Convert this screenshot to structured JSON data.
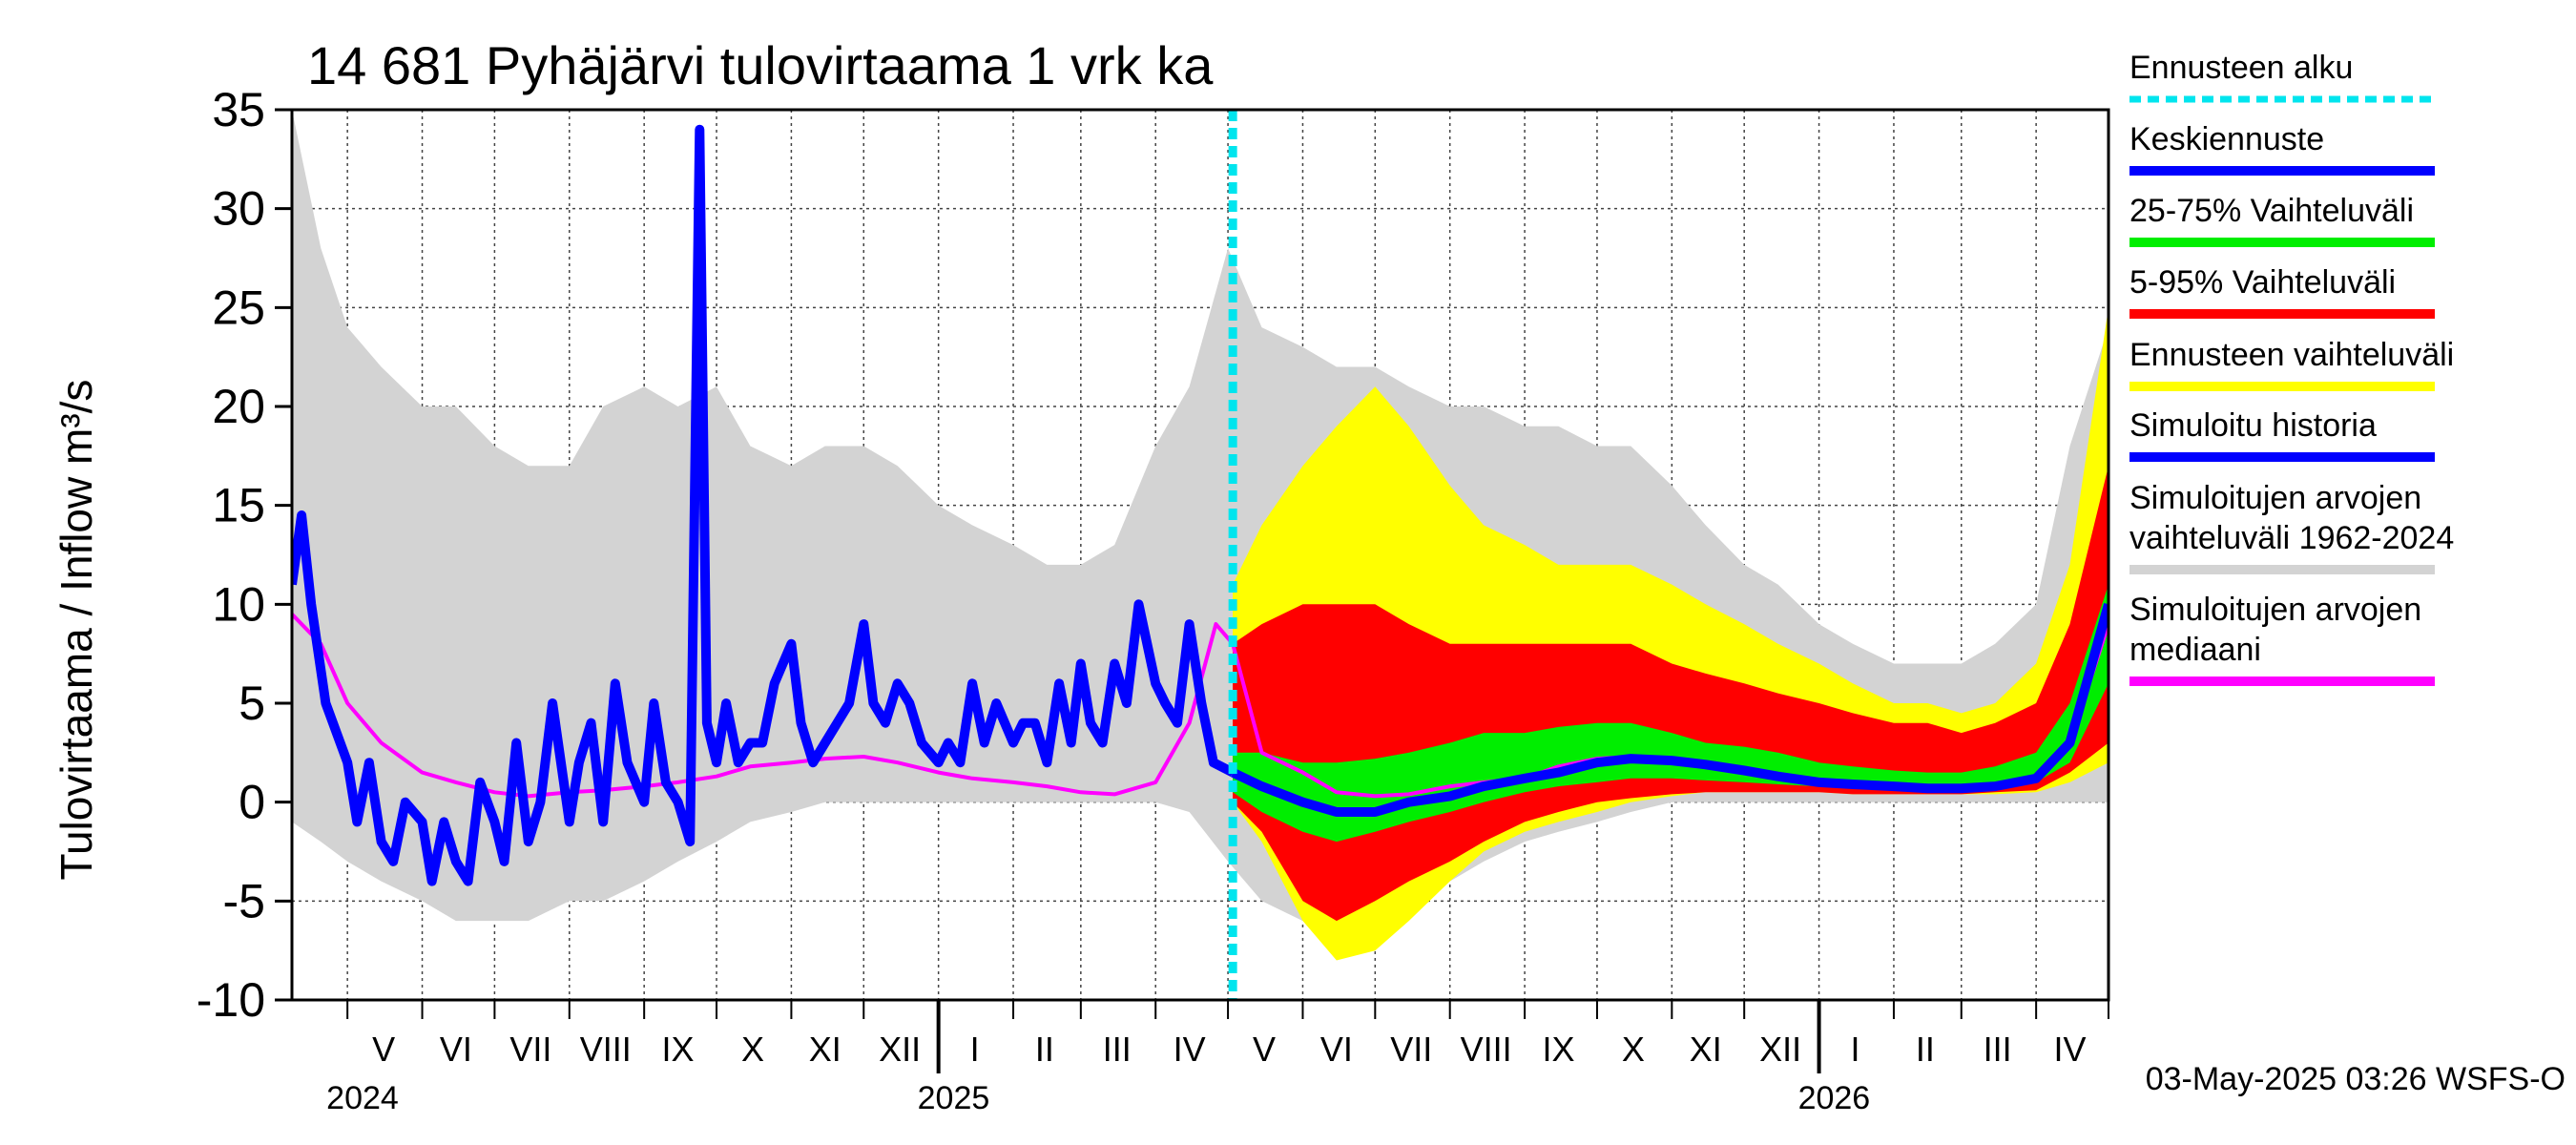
{
  "chart_data": {
    "type": "area",
    "title": "14 681 Pyhäjärvi tulovirtaama 1 vrk ka",
    "ylabel": "Tulovirtaama / Inflow    m³/s",
    "ylim": [
      -10,
      35
    ],
    "yticks": [
      35,
      30,
      25,
      20,
      15,
      10,
      5,
      0,
      -5,
      -10
    ],
    "xlim": [
      "2024-04-08",
      "2026-05-01"
    ],
    "grid": true,
    "forecast_start": "2025-05-03",
    "month_labels": [
      {
        "label": "V",
        "date": "2024-05-16"
      },
      {
        "label": "VI",
        "date": "2024-06-15"
      },
      {
        "label": "VII",
        "date": "2024-07-16"
      },
      {
        "label": "VIII",
        "date": "2024-08-16"
      },
      {
        "label": "IX",
        "date": "2024-09-15"
      },
      {
        "label": "X",
        "date": "2024-10-16"
      },
      {
        "label": "XI",
        "date": "2024-11-15"
      },
      {
        "label": "XII",
        "date": "2024-12-16"
      },
      {
        "label": "I",
        "date": "2025-01-16"
      },
      {
        "label": "II",
        "date": "2025-02-14"
      },
      {
        "label": "III",
        "date": "2025-03-16"
      },
      {
        "label": "IV",
        "date": "2025-04-15"
      },
      {
        "label": "V",
        "date": "2025-05-16"
      },
      {
        "label": "VI",
        "date": "2025-06-15"
      },
      {
        "label": "VII",
        "date": "2025-07-16"
      },
      {
        "label": "VIII",
        "date": "2025-08-16"
      },
      {
        "label": "IX",
        "date": "2025-09-15"
      },
      {
        "label": "X",
        "date": "2025-10-16"
      },
      {
        "label": "XI",
        "date": "2025-11-15"
      },
      {
        "label": "XII",
        "date": "2025-12-16"
      },
      {
        "label": "I",
        "date": "2026-01-16"
      },
      {
        "label": "II",
        "date": "2026-02-14"
      },
      {
        "label": "III",
        "date": "2026-03-16"
      },
      {
        "label": "IV",
        "date": "2026-04-15"
      }
    ],
    "year_labels": [
      {
        "label": "2024",
        "date": "2024-05-01"
      },
      {
        "label": "2025",
        "date": "2025-01-01"
      },
      {
        "label": "2026",
        "date": "2026-01-01"
      }
    ],
    "legend": {
      "placement": "right",
      "items": [
        {
          "text": "Ennusteen alku",
          "color": "#00e5ee",
          "style": "dotted"
        },
        {
          "text": "Keskiennuste",
          "color": "#0000ff"
        },
        {
          "text": "25-75% Vaihteluväli",
          "color": "#00ee00"
        },
        {
          "text": "5-95% Vaihteluväli",
          "color": "#ff0000"
        },
        {
          "text": "Ennusteen vaihteluväli",
          "color": "#ffff00"
        },
        {
          "text": "Simuloitu historia",
          "color": "#0000ff"
        },
        {
          "text": "Simuloitujen arvojen\nvaihteluväli 1962-2024",
          "color": "#d3d3d3"
        },
        {
          "text": "Simuloitujen arvojen\nmediaani",
          "color": "#ff00ff"
        }
      ]
    },
    "series": [
      {
        "name": "Simuloitujen arvojen vaihteluväli 1962-2024",
        "type": "band",
        "color": "#d3d3d3",
        "x": [
          "2024-04-08",
          "2024-04-20",
          "2024-05-01",
          "2024-05-15",
          "2024-06-01",
          "2024-06-15",
          "2024-07-01",
          "2024-07-15",
          "2024-08-01",
          "2024-08-15",
          "2024-09-01",
          "2024-09-15",
          "2024-10-01",
          "2024-10-15",
          "2024-11-01",
          "2024-11-15",
          "2024-12-01",
          "2024-12-15",
          "2025-01-01",
          "2025-01-15",
          "2025-02-01",
          "2025-02-15",
          "2025-03-01",
          "2025-03-15",
          "2025-04-01",
          "2025-04-15",
          "2025-05-01",
          "2025-05-15",
          "2025-06-01",
          "2025-06-15",
          "2025-07-01",
          "2025-07-15",
          "2025-08-01",
          "2025-08-15",
          "2025-09-01",
          "2025-09-15",
          "2025-10-01",
          "2025-10-15",
          "2025-11-01",
          "2025-11-15",
          "2025-12-01",
          "2025-12-15",
          "2026-01-01",
          "2026-01-15",
          "2026-02-01",
          "2026-02-15",
          "2026-03-01",
          "2026-03-15",
          "2026-04-01",
          "2026-04-15",
          "2026-05-01"
        ],
        "low": [
          -1,
          -2,
          -3,
          -4,
          -5,
          -6,
          -6,
          -6,
          -5,
          -5,
          -4,
          -3,
          -2,
          -1,
          -0.5,
          0,
          0,
          0,
          0,
          0,
          0,
          0,
          0,
          0,
          0,
          -0.5,
          -3,
          -5,
          -6,
          -6.5,
          -6,
          -5,
          -4,
          -3,
          -2,
          -1.5,
          -1,
          -0.5,
          0,
          0,
          0,
          0,
          0,
          0,
          0,
          0,
          0,
          0,
          0,
          0,
          0
        ],
        "high": [
          35,
          28,
          24,
          22,
          20,
          20,
          18,
          17,
          17,
          20,
          21,
          20,
          21,
          18,
          17,
          18,
          18,
          17,
          15,
          14,
          13,
          12,
          12,
          13,
          18,
          21,
          28,
          24,
          23,
          22,
          22,
          21,
          20,
          20,
          19,
          19,
          18,
          18,
          16,
          14,
          12,
          11,
          9,
          8,
          7,
          7,
          7,
          8,
          10,
          18,
          24
        ]
      },
      {
        "name": "Ennusteen vaihteluväli",
        "type": "band",
        "color": "#ffff00",
        "x": [
          "2025-05-03",
          "2025-05-15",
          "2025-06-01",
          "2025-06-15",
          "2025-07-01",
          "2025-07-15",
          "2025-08-01",
          "2025-08-15",
          "2025-09-01",
          "2025-09-15",
          "2025-10-01",
          "2025-10-15",
          "2025-11-01",
          "2025-11-15",
          "2025-12-01",
          "2025-12-15",
          "2026-01-01",
          "2026-01-15",
          "2026-02-01",
          "2026-02-15",
          "2026-03-01",
          "2026-03-15",
          "2026-04-01",
          "2026-04-15",
          "2026-05-01"
        ],
        "low": [
          0,
          -2,
          -6,
          -8,
          -7.5,
          -6,
          -4,
          -2.5,
          -1.5,
          -1,
          -0.5,
          0,
          0.3,
          0.5,
          0.5,
          0.5,
          0.5,
          0.4,
          0.4,
          0.4,
          0.4,
          0.4,
          0.5,
          1,
          2
        ],
        "high": [
          11,
          14,
          17,
          19,
          21,
          19,
          16,
          14,
          13,
          12,
          12,
          12,
          11,
          10,
          9,
          8,
          7,
          6,
          5,
          5,
          4.5,
          5,
          7,
          12,
          25
        ]
      },
      {
        "name": "5-95% Vaihteluväli",
        "type": "band",
        "color": "#ff0000",
        "x": [
          "2025-05-03",
          "2025-05-15",
          "2025-06-01",
          "2025-06-15",
          "2025-07-01",
          "2025-07-15",
          "2025-08-01",
          "2025-08-15",
          "2025-09-01",
          "2025-09-15",
          "2025-10-01",
          "2025-10-15",
          "2025-11-01",
          "2025-11-15",
          "2025-12-01",
          "2025-12-15",
          "2026-01-01",
          "2026-01-15",
          "2026-02-01",
          "2026-02-15",
          "2026-03-01",
          "2026-03-15",
          "2026-04-01",
          "2026-04-15",
          "2026-05-01"
        ],
        "low": [
          0,
          -1.5,
          -5,
          -6,
          -5,
          -4,
          -3,
          -2,
          -1,
          -0.5,
          0,
          0.2,
          0.4,
          0.5,
          0.5,
          0.5,
          0.5,
          0.4,
          0.4,
          0.4,
          0.4,
          0.5,
          0.6,
          1.5,
          3
        ],
        "high": [
          8,
          9,
          10,
          10,
          10,
          9,
          8,
          8,
          8,
          8,
          8,
          8,
          7,
          6.5,
          6,
          5.5,
          5,
          4.5,
          4,
          4,
          3.5,
          4,
          5,
          9,
          17
        ]
      },
      {
        "name": "25-75% Vaihteluväli",
        "type": "band",
        "color": "#00ee00",
        "x": [
          "2025-05-03",
          "2025-05-15",
          "2025-06-01",
          "2025-06-15",
          "2025-07-01",
          "2025-07-15",
          "2025-08-01",
          "2025-08-15",
          "2025-09-01",
          "2025-09-15",
          "2025-10-01",
          "2025-10-15",
          "2025-11-01",
          "2025-11-15",
          "2025-12-01",
          "2025-12-15",
          "2026-01-01",
          "2026-01-15",
          "2026-02-01",
          "2026-02-15",
          "2026-03-01",
          "2026-03-15",
          "2026-04-01",
          "2026-04-15",
          "2026-05-01"
        ],
        "low": [
          0.5,
          -0.5,
          -1.5,
          -2,
          -1.5,
          -1,
          -0.5,
          0,
          0.5,
          0.8,
          1,
          1.2,
          1.2,
          1.1,
          1,
          0.9,
          0.8,
          0.7,
          0.6,
          0.6,
          0.6,
          0.7,
          1,
          2,
          6
        ],
        "high": [
          2.5,
          2.5,
          2,
          2,
          2.2,
          2.5,
          3,
          3.5,
          3.5,
          3.8,
          4,
          4,
          3.5,
          3,
          2.8,
          2.5,
          2,
          1.8,
          1.6,
          1.5,
          1.5,
          1.8,
          2.5,
          5,
          11
        ]
      },
      {
        "name": "Simuloitujen arvojen mediaani",
        "type": "line",
        "color": "#ff00ff",
        "x": [
          "2024-04-08",
          "2024-04-20",
          "2024-05-01",
          "2024-05-15",
          "2024-06-01",
          "2024-06-15",
          "2024-07-01",
          "2024-07-15",
          "2024-08-01",
          "2024-08-15",
          "2024-09-01",
          "2024-09-15",
          "2024-10-01",
          "2024-10-15",
          "2024-11-01",
          "2024-11-15",
          "2024-12-01",
          "2024-12-15",
          "2025-01-01",
          "2025-01-15",
          "2025-02-01",
          "2025-02-15",
          "2025-03-01",
          "2025-03-15",
          "2025-04-01",
          "2025-04-15",
          "2025-04-26",
          "2025-05-03",
          "2025-05-15",
          "2025-06-01",
          "2025-06-15",
          "2025-07-01",
          "2025-07-15",
          "2025-08-01",
          "2025-08-15",
          "2025-09-01",
          "2025-09-15",
          "2025-10-01",
          "2025-10-15",
          "2025-11-01",
          "2025-11-15",
          "2025-12-01",
          "2025-12-15",
          "2026-01-01",
          "2026-01-15",
          "2026-02-01",
          "2026-02-15",
          "2026-03-01",
          "2026-03-15",
          "2026-04-01",
          "2026-04-15",
          "2026-05-01"
        ],
        "values": [
          9.5,
          8,
          5,
          3,
          1.5,
          1,
          0.5,
          0.3,
          0.5,
          0.6,
          0.8,
          1,
          1.3,
          1.8,
          2,
          2.2,
          2.3,
          2,
          1.5,
          1.2,
          1,
          0.8,
          0.5,
          0.4,
          1,
          4,
          9,
          8,
          2.5,
          1.5,
          0.5,
          0.3,
          0.4,
          0.8,
          1,
          1.2,
          1.8,
          2.2,
          2.3,
          2.2,
          1.8,
          1.5,
          1.2,
          0.9,
          0.8,
          0.7,
          0.7,
          0.6,
          0.7,
          1.2,
          3,
          9
        ]
      },
      {
        "name": "Simuloitu historia",
        "type": "line",
        "color": "#0000ff",
        "x": [
          "2024-04-08",
          "2024-04-12",
          "2024-04-16",
          "2024-04-22",
          "2024-05-01",
          "2024-05-05",
          "2024-05-10",
          "2024-05-15",
          "2024-05-20",
          "2024-05-25",
          "2024-06-01",
          "2024-06-05",
          "2024-06-10",
          "2024-06-15",
          "2024-06-20",
          "2024-06-25",
          "2024-07-01",
          "2024-07-05",
          "2024-07-10",
          "2024-07-15",
          "2024-07-20",
          "2024-07-25",
          "2024-08-01",
          "2024-08-05",
          "2024-08-10",
          "2024-08-15",
          "2024-08-20",
          "2024-08-25",
          "2024-09-01",
          "2024-09-05",
          "2024-09-10",
          "2024-09-15",
          "2024-09-20",
          "2024-09-24",
          "2024-09-27",
          "2024-10-01",
          "2024-10-05",
          "2024-10-10",
          "2024-10-15",
          "2024-10-20",
          "2024-10-25",
          "2024-11-01",
          "2024-11-05",
          "2024-11-10",
          "2024-11-15",
          "2024-11-20",
          "2024-11-25",
          "2024-12-01",
          "2024-12-05",
          "2024-12-10",
          "2024-12-15",
          "2024-12-20",
          "2024-12-25",
          "2025-01-01",
          "2025-01-05",
          "2025-01-10",
          "2025-01-15",
          "2025-01-20",
          "2025-01-25",
          "2025-02-01",
          "2025-02-05",
          "2025-02-10",
          "2025-02-15",
          "2025-02-20",
          "2025-02-25",
          "2025-03-01",
          "2025-03-05",
          "2025-03-10",
          "2025-03-15",
          "2025-03-20",
          "2025-03-25",
          "2025-04-01",
          "2025-04-05",
          "2025-04-10",
          "2025-04-15",
          "2025-04-20",
          "2025-04-25",
          "2025-05-03"
        ],
        "values": [
          11,
          14.5,
          10,
          5,
          2,
          -1,
          2,
          -2,
          -3,
          0,
          -1,
          -4,
          -1,
          -3,
          -4,
          1,
          -1,
          -3,
          3,
          -2,
          0,
          5,
          -1,
          2,
          4,
          -1,
          6,
          2,
          0,
          5,
          1,
          0,
          -2,
          34,
          4,
          2,
          5,
          2,
          3,
          3,
          6,
          8,
          4,
          2,
          3,
          4,
          5,
          9,
          5,
          4,
          6,
          5,
          3,
          2,
          3,
          2,
          6,
          3,
          5,
          3,
          4,
          4,
          2,
          6,
          3,
          7,
          4,
          3,
          7,
          5,
          10,
          6,
          5,
          4,
          9,
          5,
          2,
          1.5
        ]
      },
      {
        "name": "Keskiennuste",
        "type": "line",
        "color": "#0000ff",
        "x": [
          "2025-05-03",
          "2025-05-15",
          "2025-06-01",
          "2025-06-15",
          "2025-07-01",
          "2025-07-15",
          "2025-08-01",
          "2025-08-15",
          "2025-09-01",
          "2025-09-15",
          "2025-10-01",
          "2025-10-15",
          "2025-11-01",
          "2025-11-15",
          "2025-12-01",
          "2025-12-15",
          "2026-01-01",
          "2026-01-15",
          "2026-02-01",
          "2026-02-15",
          "2026-03-01",
          "2026-03-15",
          "2026-04-01",
          "2026-04-15",
          "2026-05-01"
        ],
        "values": [
          1.5,
          0.8,
          0,
          -0.5,
          -0.5,
          0,
          0.3,
          0.8,
          1.2,
          1.5,
          2,
          2.2,
          2.1,
          1.9,
          1.6,
          1.3,
          1,
          0.9,
          0.8,
          0.7,
          0.7,
          0.8,
          1.2,
          3,
          10
        ]
      }
    ]
  },
  "footer": "03-May-2025 03:26 WSFS-O"
}
